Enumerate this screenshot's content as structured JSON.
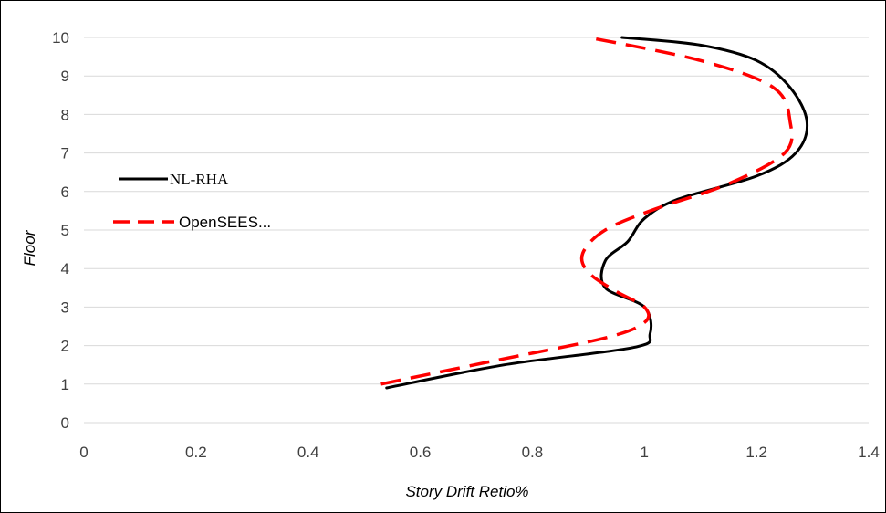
{
  "chart_data": {
    "type": "line",
    "xlabel": "Story Drift Retio%",
    "ylabel": "Floor",
    "xlim": [
      0,
      1.4
    ],
    "ylim": [
      0,
      10
    ],
    "x_ticks": [
      "0",
      "0.2",
      "0.4",
      "0.6",
      "0.8",
      "1",
      "1.2",
      "1.4"
    ],
    "y_ticks": [
      "0",
      "1",
      "2",
      "3",
      "4",
      "5",
      "6",
      "7",
      "8",
      "9",
      "10"
    ],
    "grid": "horizontal",
    "legend_position": "left",
    "series": [
      {
        "name": "NL-RHA",
        "color": "#000000",
        "style": "solid",
        "points": [
          [
            0.54,
            0.9
          ],
          [
            0.75,
            1.5
          ],
          [
            0.98,
            1.95
          ],
          [
            1.01,
            2.3
          ],
          [
            1.0,
            3.0
          ],
          [
            0.93,
            3.5
          ],
          [
            0.93,
            4.2
          ],
          [
            0.97,
            4.7
          ],
          [
            1.0,
            5.3
          ],
          [
            1.06,
            5.8
          ],
          [
            1.2,
            6.4
          ],
          [
            1.27,
            7.0
          ],
          [
            1.29,
            7.8
          ],
          [
            1.26,
            8.7
          ],
          [
            1.2,
            9.4
          ],
          [
            1.1,
            9.8
          ],
          [
            0.96,
            10.0
          ]
        ]
      },
      {
        "name": "OpenSEES...",
        "color": "#ff0000",
        "style": "dashed",
        "points": [
          [
            0.53,
            1.0
          ],
          [
            0.73,
            1.6
          ],
          [
            0.93,
            2.2
          ],
          [
            1.0,
            2.6
          ],
          [
            1.0,
            3.0
          ],
          [
            0.95,
            3.4
          ],
          [
            0.9,
            3.9
          ],
          [
            0.89,
            4.4
          ],
          [
            0.93,
            5.0
          ],
          [
            1.02,
            5.55
          ],
          [
            1.15,
            6.2
          ],
          [
            1.25,
            7.0
          ],
          [
            1.26,
            7.8
          ],
          [
            1.23,
            8.7
          ],
          [
            1.1,
            9.4
          ],
          [
            0.9,
            10.0
          ]
        ]
      }
    ]
  }
}
